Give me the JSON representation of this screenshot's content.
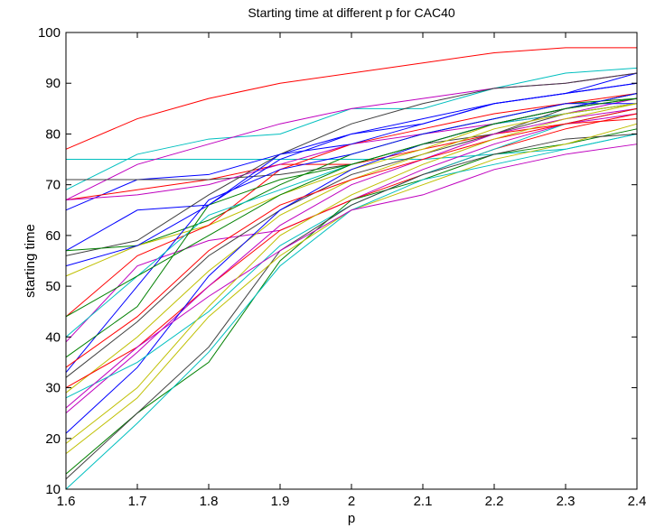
{
  "chart_data": {
    "type": "line",
    "title": "Starting time at different p for CAC40",
    "xlabel": "p",
    "ylabel": "starting time",
    "x": [
      1.6,
      1.7,
      1.8,
      1.9,
      2.0,
      2.1,
      2.2,
      2.3,
      2.4
    ],
    "xlim": [
      1.6,
      2.4
    ],
    "ylim": [
      10,
      100
    ],
    "xticks": [
      "1.6",
      "1.7",
      "1.8",
      "1.9",
      "2",
      "2.1",
      "2.2",
      "2.3",
      "2.4"
    ],
    "yticks": [
      "10",
      "20",
      "30",
      "40",
      "50",
      "60",
      "70",
      "80",
      "90",
      "100"
    ],
    "grid": false,
    "legend": "none",
    "series": [
      {
        "color": "#ff0000",
        "values": [
          77,
          83,
          87,
          90,
          92,
          94,
          96,
          97,
          97
        ]
      },
      {
        "color": "#00bfbf",
        "values": [
          75,
          75,
          75,
          75,
          75,
          75,
          76,
          77,
          80
        ]
      },
      {
        "color": "#00bfbf",
        "values": [
          69,
          76,
          79,
          80,
          85,
          85,
          89,
          92,
          93
        ]
      },
      {
        "color": "#bf00bf",
        "values": [
          67,
          74,
          78,
          82,
          85,
          87,
          89,
          90,
          92
        ]
      },
      {
        "color": "#0000ff",
        "values": [
          65,
          71,
          72,
          76,
          80,
          83,
          86,
          88,
          90
        ]
      },
      {
        "color": "#ff0000",
        "values": [
          67,
          69,
          71,
          74,
          74,
          77,
          80,
          82,
          83
        ]
      },
      {
        "color": "#404040",
        "values": [
          71,
          71,
          71,
          72,
          74,
          78,
          80,
          84,
          86
        ]
      },
      {
        "color": "#bf00bf",
        "values": [
          67,
          68,
          70,
          74,
          78,
          80,
          82,
          84,
          87
        ]
      },
      {
        "color": "#0000ff",
        "values": [
          57,
          65,
          66,
          75,
          80,
          82,
          86,
          88,
          92
        ]
      },
      {
        "color": "#404040",
        "values": [
          56,
          59,
          68,
          76,
          82,
          86,
          89,
          90,
          92
        ]
      },
      {
        "color": "#008000",
        "values": [
          57,
          58,
          63,
          70,
          76,
          80,
          83,
          86,
          87
        ]
      },
      {
        "color": "#bfbf00",
        "values": [
          52,
          58,
          62,
          68,
          73,
          77,
          82,
          85,
          88
        ]
      },
      {
        "color": "#ff0000",
        "values": [
          44,
          56,
          62,
          73,
          78,
          81,
          84,
          86,
          88
        ]
      },
      {
        "color": "#bf00bf",
        "values": [
          39,
          54,
          59,
          61,
          67,
          73,
          78,
          82,
          84
        ]
      },
      {
        "color": "#0000ff",
        "values": [
          33,
          50,
          67,
          73,
          76,
          80,
          83,
          86,
          86
        ]
      },
      {
        "color": "#00bfbf",
        "values": [
          40,
          52,
          64,
          69,
          74,
          78,
          82,
          84,
          86
        ]
      },
      {
        "color": "#008000",
        "values": [
          36,
          46,
          66,
          71,
          74,
          78,
          82,
          85,
          88
        ]
      },
      {
        "color": "#404040",
        "values": [
          32,
          43,
          56,
          65,
          72,
          76,
          80,
          85,
          87
        ]
      },
      {
        "color": "#bfbf00",
        "values": [
          29,
          40,
          53,
          64,
          71,
          76,
          81,
          84,
          86
        ]
      },
      {
        "color": "#ff0000",
        "values": [
          30,
          38,
          50,
          61,
          67,
          72,
          77,
          81,
          84
        ]
      },
      {
        "color": "#bf00bf",
        "values": [
          25,
          37,
          50,
          62,
          70,
          75,
          80,
          83,
          85
        ]
      },
      {
        "color": "#0000ff",
        "values": [
          21,
          34,
          52,
          65,
          73,
          78,
          82,
          85,
          88
        ]
      },
      {
        "color": "#00bfbf",
        "values": [
          28,
          35,
          45,
          58,
          66,
          72,
          77,
          82,
          85
        ]
      },
      {
        "color": "#008000",
        "values": [
          13,
          25,
          35,
          55,
          67,
          71,
          76,
          78,
          81
        ]
      },
      {
        "color": "#404040",
        "values": [
          12,
          25,
          38,
          57,
          66,
          72,
          76,
          79,
          80
        ]
      },
      {
        "color": "#bfbf00",
        "values": [
          17,
          28,
          44,
          56,
          65,
          70,
          75,
          78,
          82
        ]
      },
      {
        "color": "#00bfbf",
        "values": [
          10,
          23,
          37,
          54,
          65,
          71,
          74,
          77,
          80
        ]
      },
      {
        "color": "#bf00bf",
        "values": [
          26,
          38,
          48,
          57,
          65,
          68,
          73,
          76,
          78
        ]
      },
      {
        "color": "#0000ff",
        "values": [
          54,
          58,
          66,
          76,
          78,
          82,
          86,
          88,
          90
        ]
      },
      {
        "color": "#008000",
        "values": [
          44,
          52,
          60,
          68,
          74,
          78,
          82,
          85,
          87
        ]
      },
      {
        "color": "#ff0000",
        "values": [
          34,
          44,
          57,
          66,
          71,
          75,
          79,
          82,
          85
        ]
      },
      {
        "color": "#bfbf00",
        "values": [
          19,
          30,
          46,
          60,
          68,
          74,
          79,
          83,
          86
        ]
      }
    ]
  }
}
